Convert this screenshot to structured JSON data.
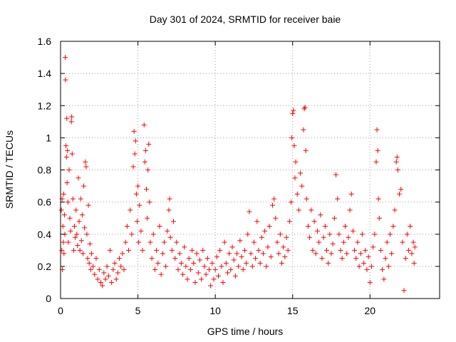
{
  "chart_data": {
    "type": "scatter",
    "title": "Day 301 of 2024, SRMTID for receiver baie",
    "xlabel": "GPS time / hours",
    "ylabel": "SRMTID / TECUs",
    "xlim": [
      0,
      24.5
    ],
    "ylim": [
      0,
      1.6
    ],
    "x_ticks": [
      0,
      5,
      10,
      15,
      20
    ],
    "x_tick_labels": [
      "0",
      "5",
      "10",
      "15",
      "20"
    ],
    "y_ticks": [
      0,
      0.2,
      0.4,
      0.6,
      0.8,
      1.0,
      1.2,
      1.4,
      1.6
    ],
    "y_tick_labels": [
      "0",
      "0.2",
      "0.4",
      "0.6",
      "0.8",
      "1",
      "1.2",
      "1.4",
      "1.6"
    ],
    "grid": true,
    "marker": "+",
    "series_color": "#ff0000",
    "points": [
      [
        0.05,
        0.55
      ],
      [
        0.08,
        0.3
      ],
      [
        0.1,
        0.62
      ],
      [
        0.12,
        0.18
      ],
      [
        0.15,
        0.45
      ],
      [
        0.18,
        0.35
      ],
      [
        0.2,
        0.65
      ],
      [
        0.22,
        0.28
      ],
      [
        0.25,
        0.52
      ],
      [
        0.28,
        0.4
      ],
      [
        0.3,
        1.5
      ],
      [
        0.32,
        1.36
      ],
      [
        0.35,
        0.95
      ],
      [
        0.38,
        0.88
      ],
      [
        0.4,
        1.12
      ],
      [
        0.42,
        0.72
      ],
      [
        0.45,
        0.92
      ],
      [
        0.48,
        0.6
      ],
      [
        0.5,
        0.35
      ],
      [
        0.55,
        0.8
      ],
      [
        0.6,
        0.5
      ],
      [
        0.65,
        0.42
      ],
      [
        0.7,
        1.1
      ],
      [
        0.72,
        1.13
      ],
      [
        0.75,
        0.9
      ],
      [
        0.8,
        0.62
      ],
      [
        0.85,
        0.3
      ],
      [
        0.9,
        0.45
      ],
      [
        0.95,
        0.38
      ],
      [
        1.0,
        0.55
      ],
      [
        1.05,
        0.4
      ],
      [
        1.1,
        0.33
      ],
      [
        1.15,
        0.75
      ],
      [
        1.2,
        0.48
      ],
      [
        1.25,
        0.3
      ],
      [
        1.3,
        0.62
      ],
      [
        1.35,
        0.36
      ],
      [
        1.4,
        0.52
      ],
      [
        1.45,
        0.28
      ],
      [
        1.5,
        0.7
      ],
      [
        1.55,
        0.44
      ],
      [
        1.6,
        0.85
      ],
      [
        1.65,
        0.82
      ],
      [
        1.7,
        0.4
      ],
      [
        1.75,
        0.25
      ],
      [
        1.8,
        0.58
      ],
      [
        1.85,
        0.22
      ],
      [
        1.9,
        0.34
      ],
      [
        1.95,
        0.18
      ],
      [
        2.0,
        0.28
      ],
      [
        2.1,
        0.2
      ],
      [
        2.2,
        0.15
      ],
      [
        2.3,
        0.25
      ],
      [
        2.4,
        0.12
      ],
      [
        2.5,
        0.18
      ],
      [
        2.6,
        0.1
      ],
      [
        2.7,
        0.08
      ],
      [
        2.8,
        0.16
      ],
      [
        2.9,
        0.12
      ],
      [
        3.0,
        0.2
      ],
      [
        3.1,
        0.14
      ],
      [
        3.2,
        0.3
      ],
      [
        3.3,
        0.1
      ],
      [
        3.4,
        0.18
      ],
      [
        3.5,
        0.22
      ],
      [
        3.6,
        0.12
      ],
      [
        3.7,
        0.16
      ],
      [
        3.8,
        0.25
      ],
      [
        3.9,
        0.2
      ],
      [
        4.0,
        0.28
      ],
      [
        4.1,
        0.18
      ],
      [
        4.2,
        0.35
      ],
      [
        4.3,
        0.45
      ],
      [
        4.4,
        0.3
      ],
      [
        4.5,
        0.55
      ],
      [
        4.6,
        0.4
      ],
      [
        4.7,
        0.82
      ],
      [
        4.75,
        1.04
      ],
      [
        4.8,
        0.9
      ],
      [
        4.85,
        0.98
      ],
      [
        4.9,
        0.65
      ],
      [
        4.95,
        0.48
      ],
      [
        5.0,
        0.7
      ],
      [
        5.05,
        0.35
      ],
      [
        5.1,
        0.58
      ],
      [
        5.2,
        0.42
      ],
      [
        5.3,
        0.3
      ],
      [
        5.4,
        1.08
      ],
      [
        5.45,
        0.85
      ],
      [
        5.5,
        0.92
      ],
      [
        5.55,
        0.68
      ],
      [
        5.6,
        0.5
      ],
      [
        5.65,
        0.8
      ],
      [
        5.7,
        0.96
      ],
      [
        5.75,
        0.6
      ],
      [
        5.8,
        0.35
      ],
      [
        5.9,
        0.25
      ],
      [
        6.0,
        0.4
      ],
      [
        6.1,
        0.18
      ],
      [
        6.2,
        0.3
      ],
      [
        6.3,
        0.22
      ],
      [
        6.4,
        0.45
      ],
      [
        6.5,
        0.15
      ],
      [
        6.6,
        0.28
      ],
      [
        6.7,
        0.35
      ],
      [
        6.8,
        0.2
      ],
      [
        6.9,
        0.42
      ],
      [
        7.0,
        0.55
      ],
      [
        7.05,
        0.62
      ],
      [
        7.1,
        0.38
      ],
      [
        7.2,
        0.3
      ],
      [
        7.3,
        0.48
      ],
      [
        7.4,
        0.25
      ],
      [
        7.5,
        0.35
      ],
      [
        7.6,
        0.18
      ],
      [
        7.7,
        0.28
      ],
      [
        7.8,
        0.22
      ],
      [
        7.9,
        0.15
      ],
      [
        8.0,
        0.32
      ],
      [
        8.1,
        0.2
      ],
      [
        8.2,
        0.12
      ],
      [
        8.3,
        0.25
      ],
      [
        8.4,
        0.18
      ],
      [
        8.5,
        0.3
      ],
      [
        8.6,
        0.22
      ],
      [
        8.7,
        0.1
      ],
      [
        8.8,
        0.28
      ],
      [
        8.9,
        0.16
      ],
      [
        9.0,
        0.24
      ],
      [
        9.1,
        0.12
      ],
      [
        9.2,
        0.3
      ],
      [
        9.3,
        0.2
      ],
      [
        9.4,
        0.15
      ],
      [
        9.5,
        0.25
      ],
      [
        9.6,
        0.18
      ],
      [
        9.7,
        0.08
      ],
      [
        9.8,
        0.22
      ],
      [
        9.9,
        0.12
      ],
      [
        10.0,
        0.18
      ],
      [
        10.1,
        0.26
      ],
      [
        10.2,
        0.14
      ],
      [
        10.3,
        0.3
      ],
      [
        10.4,
        0.2
      ],
      [
        10.5,
        0.1
      ],
      [
        10.6,
        0.35
      ],
      [
        10.7,
        0.22
      ],
      [
        10.8,
        0.16
      ],
      [
        10.9,
        0.28
      ],
      [
        11.0,
        0.18
      ],
      [
        11.1,
        0.32
      ],
      [
        11.2,
        0.24
      ],
      [
        11.3,
        0.14
      ],
      [
        11.4,
        0.28
      ],
      [
        11.5,
        0.2
      ],
      [
        11.6,
        0.36
      ],
      [
        11.7,
        0.26
      ],
      [
        11.8,
        0.18
      ],
      [
        11.9,
        0.3
      ],
      [
        12.0,
        0.22
      ],
      [
        12.1,
        0.4
      ],
      [
        12.2,
        0.54
      ],
      [
        12.3,
        0.28
      ],
      [
        12.4,
        0.2
      ],
      [
        12.5,
        0.35
      ],
      [
        12.6,
        0.25
      ],
      [
        12.7,
        0.48
      ],
      [
        12.8,
        0.3
      ],
      [
        12.9,
        0.22
      ],
      [
        13.0,
        0.38
      ],
      [
        13.1,
        0.28
      ],
      [
        13.2,
        0.42
      ],
      [
        13.3,
        0.2
      ],
      [
        13.4,
        0.32
      ],
      [
        13.5,
        0.45
      ],
      [
        13.6,
        0.26
      ],
      [
        13.7,
        0.58
      ],
      [
        13.8,
        0.62
      ],
      [
        13.9,
        0.5
      ],
      [
        14.0,
        0.35
      ],
      [
        14.1,
        0.28
      ],
      [
        14.2,
        0.4
      ],
      [
        14.3,
        0.22
      ],
      [
        14.4,
        0.32
      ],
      [
        14.5,
        0.26
      ],
      [
        14.6,
        0.38
      ],
      [
        14.7,
        0.3
      ],
      [
        14.8,
        0.48
      ],
      [
        14.9,
        0.6
      ],
      [
        14.95,
        1.0
      ],
      [
        15.0,
        1.15
      ],
      [
        15.05,
        1.17
      ],
      [
        15.1,
        0.95
      ],
      [
        15.15,
        0.75
      ],
      [
        15.2,
        0.85
      ],
      [
        15.3,
        0.65
      ],
      [
        15.4,
        0.55
      ],
      [
        15.5,
        0.78
      ],
      [
        15.6,
        0.7
      ],
      [
        15.7,
        1.05
      ],
      [
        15.75,
        1.18
      ],
      [
        15.8,
        1.19
      ],
      [
        15.85,
        0.92
      ],
      [
        15.9,
        0.62
      ],
      [
        16.0,
        0.45
      ],
      [
        16.1,
        0.38
      ],
      [
        16.2,
        0.55
      ],
      [
        16.3,
        0.3
      ],
      [
        16.4,
        0.48
      ],
      [
        16.5,
        0.28
      ],
      [
        16.6,
        0.42
      ],
      [
        16.7,
        0.35
      ],
      [
        16.8,
        0.52
      ],
      [
        16.9,
        0.25
      ],
      [
        17.0,
        0.38
      ],
      [
        17.1,
        0.45
      ],
      [
        17.2,
        0.3
      ],
      [
        17.3,
        0.22
      ],
      [
        17.4,
        0.4
      ],
      [
        17.5,
        0.28
      ],
      [
        17.6,
        0.34
      ],
      [
        17.7,
        0.5
      ],
      [
        17.8,
        0.77
      ],
      [
        17.9,
        0.62
      ],
      [
        18.0,
        0.4
      ],
      [
        18.1,
        0.3
      ],
      [
        18.2,
        0.25
      ],
      [
        18.3,
        0.35
      ],
      [
        18.4,
        0.45
      ],
      [
        18.5,
        0.28
      ],
      [
        18.6,
        0.38
      ],
      [
        18.7,
        0.55
      ],
      [
        18.8,
        0.65
      ],
      [
        18.9,
        0.42
      ],
      [
        19.0,
        0.3
      ],
      [
        19.1,
        0.25
      ],
      [
        19.2,
        0.35
      ],
      [
        19.3,
        0.2
      ],
      [
        19.4,
        0.28
      ],
      [
        19.5,
        0.4
      ],
      [
        19.6,
        0.22
      ],
      [
        19.7,
        0.3
      ],
      [
        19.8,
        0.18
      ],
      [
        19.9,
        0.26
      ],
      [
        20.0,
        0.1
      ],
      [
        20.1,
        0.2
      ],
      [
        20.2,
        0.32
      ],
      [
        20.3,
        0.4
      ],
      [
        20.4,
        0.85
      ],
      [
        20.45,
        1.05
      ],
      [
        20.5,
        0.92
      ],
      [
        20.55,
        0.62
      ],
      [
        20.6,
        0.5
      ],
      [
        20.7,
        0.3
      ],
      [
        20.8,
        0.18
      ],
      [
        20.9,
        0.12
      ],
      [
        21.0,
        0.25
      ],
      [
        21.1,
        0.35
      ],
      [
        21.2,
        0.2
      ],
      [
        21.3,
        0.4
      ],
      [
        21.4,
        0.28
      ],
      [
        21.5,
        0.45
      ],
      [
        21.6,
        0.55
      ],
      [
        21.7,
        0.85
      ],
      [
        21.75,
        0.88
      ],
      [
        21.8,
        0.8
      ],
      [
        21.9,
        0.65
      ],
      [
        22.0,
        0.68
      ],
      [
        22.1,
        0.35
      ],
      [
        22.2,
        0.05
      ],
      [
        22.3,
        0.25
      ],
      [
        22.4,
        0.4
      ],
      [
        22.5,
        0.3
      ],
      [
        22.6,
        0.45
      ],
      [
        22.7,
        0.28
      ],
      [
        22.8,
        0.35
      ],
      [
        22.85,
        0.22
      ],
      [
        22.9,
        0.32
      ]
    ]
  }
}
